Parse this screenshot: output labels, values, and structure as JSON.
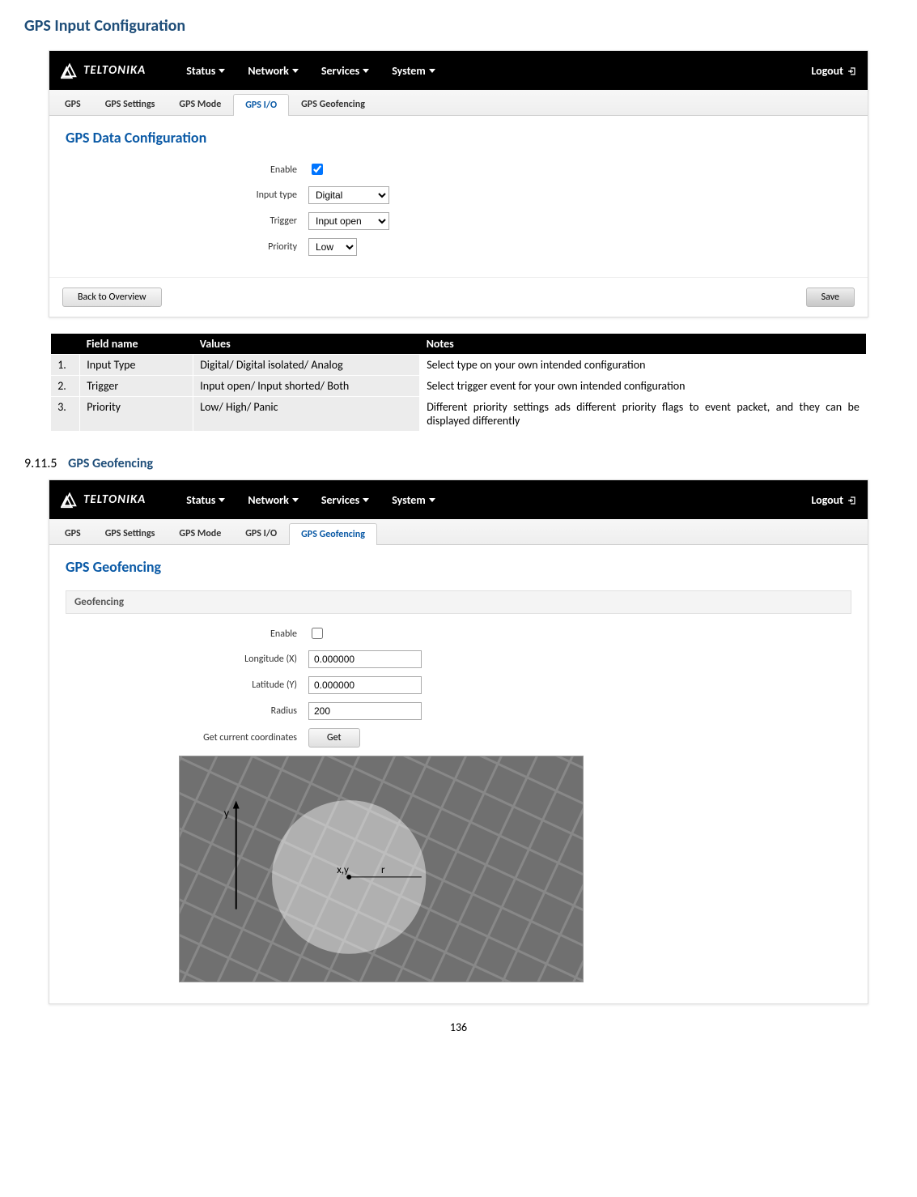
{
  "doc": {
    "heading1": "GPS Input Configuration",
    "sub_num": "9.11.5",
    "sub_title": "GPS Geofencing",
    "page_number": "136"
  },
  "navbar": {
    "brand": "TELTONIKA",
    "items": [
      "Status",
      "Network",
      "Services",
      "System"
    ],
    "logout": "Logout"
  },
  "tabs_top": {
    "items": [
      "GPS",
      "GPS Settings",
      "GPS Mode",
      "GPS I/O",
      "GPS Geofencing"
    ],
    "active_index": 3
  },
  "tabs_bottom": {
    "items": [
      "GPS",
      "GPS Settings",
      "GPS Mode",
      "GPS I/O",
      "GPS Geofencing"
    ],
    "active_index": 4
  },
  "panel1": {
    "title": "GPS Data Configuration",
    "rows": {
      "enable_label": "Enable",
      "enable_checked": true,
      "input_type_label": "Input type",
      "input_type_value": "Digital",
      "trigger_label": "Trigger",
      "trigger_value": "Input open",
      "priority_label": "Priority",
      "priority_value": "Low"
    },
    "back_btn": "Back to Overview",
    "save_btn": "Save"
  },
  "ref_table": {
    "headers": [
      "",
      "Field name",
      "Values",
      "Notes"
    ],
    "rows": [
      {
        "n": "1.",
        "field": "Input Type",
        "values": "Digital/ Digital isolated/ Analog",
        "notes": "Select type on your own intended configuration"
      },
      {
        "n": "2.",
        "field": "Trigger",
        "values": "Input open/ Input shorted/ Both",
        "notes": "Select trigger event for your own intended configuration"
      },
      {
        "n": "3.",
        "field": "Priority",
        "values": "Low/ High/ Panic",
        "notes": "Different priority settings ads different priority flags to event packet, and they can be displayed differently"
      }
    ]
  },
  "panel2": {
    "title": "GPS Geofencing",
    "subsection": "Geofencing",
    "rows": {
      "enable_label": "Enable",
      "enable_checked": false,
      "lon_label": "Longitude (X)",
      "lon_value": "0.000000",
      "lat_label": "Latitude (Y)",
      "lat_value": "0.000000",
      "radius_label": "Radius",
      "radius_value": "200",
      "getcoords_label": "Get current coordinates",
      "get_btn": "Get"
    },
    "map": {
      "center_label": "x,y",
      "r_label": "r",
      "y_axis_label": "y"
    }
  }
}
